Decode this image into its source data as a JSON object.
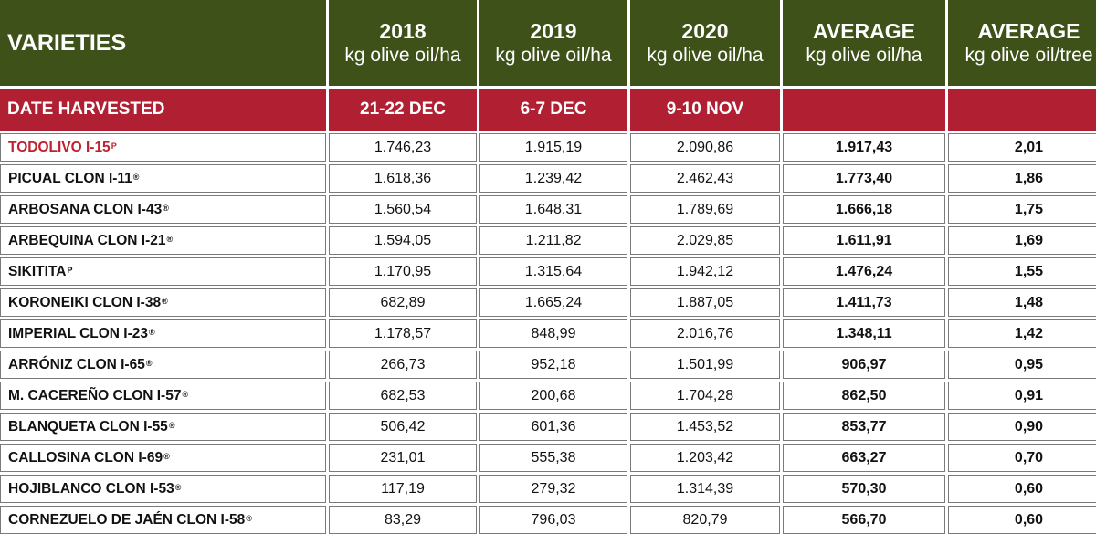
{
  "header": {
    "varieties_label": "VARIETIES",
    "columns": [
      {
        "title": "2018",
        "unit": "kg olive oil/ha"
      },
      {
        "title": "2019",
        "unit": "kg olive oil/ha"
      },
      {
        "title": "2020",
        "unit": "kg olive oil/ha"
      },
      {
        "title": "AVERAGE",
        "unit": "kg olive oil/ha"
      },
      {
        "title": "AVERAGE",
        "unit": "kg olive oil/tree"
      }
    ]
  },
  "date_row": {
    "label": "DATE HARVESTED",
    "values": [
      "21-22 DEC",
      "6-7 DEC",
      "9-10 NOV",
      "",
      ""
    ]
  },
  "rows": [
    {
      "name": "TODOLIVO I-15",
      "mark": "P",
      "values": [
        "1.746,23",
        "1.915,19",
        "2.090,86",
        "1.917,43",
        "2,01"
      ]
    },
    {
      "name": "PICUAL CLON I-11",
      "mark": "®",
      "values": [
        "1.618,36",
        "1.239,42",
        "2.462,43",
        "1.773,40",
        "1,86"
      ]
    },
    {
      "name": "ARBOSANA CLON I-43",
      "mark": "®",
      "values": [
        "1.560,54",
        "1.648,31",
        "1.789,69",
        "1.666,18",
        "1,75"
      ]
    },
    {
      "name": "ARBEQUINA CLON I-21",
      "mark": "®",
      "values": [
        "1.594,05",
        "1.211,82",
        "2.029,85",
        "1.611,91",
        "1,69"
      ]
    },
    {
      "name": "SIKITITA",
      "mark": "P",
      "values": [
        "1.170,95",
        "1.315,64",
        "1.942,12",
        "1.476,24",
        "1,55"
      ]
    },
    {
      "name": "KORONEIKI CLON I-38",
      "mark": "®",
      "values": [
        "682,89",
        "1.665,24",
        "1.887,05",
        "1.411,73",
        "1,48"
      ]
    },
    {
      "name": "IMPERIAL CLON I-23",
      "mark": "®",
      "values": [
        "1.178,57",
        "848,99",
        "2.016,76",
        "1.348,11",
        "1,42"
      ]
    },
    {
      "name": "ARRÓNIZ CLON I-65",
      "mark": "®",
      "values": [
        "266,73",
        "952,18",
        "1.501,99",
        "906,97",
        "0,95"
      ]
    },
    {
      "name": "M. CACEREÑO CLON I-57",
      "mark": "®",
      "values": [
        "682,53",
        "200,68",
        "1.704,28",
        "862,50",
        "0,91"
      ]
    },
    {
      "name": "BLANQUETA CLON I-55",
      "mark": "®",
      "values": [
        "506,42",
        "601,36",
        "1.453,52",
        "853,77",
        "0,90"
      ]
    },
    {
      "name": "CALLOSINA CLON I-69",
      "mark": "®",
      "values": [
        "231,01",
        "555,38",
        "1.203,42",
        "663,27",
        "0,70"
      ]
    },
    {
      "name": "HOJIBLANCO CLON I-53",
      "mark": "®",
      "values": [
        "117,19",
        "279,32",
        "1.314,39",
        "570,30",
        "0,60"
      ]
    },
    {
      "name": "CORNEZUELO DE JAÉN CLON I-58",
      "mark": "®",
      "values": [
        "83,29",
        "796,03",
        "820,79",
        "566,70",
        "0,60"
      ]
    }
  ],
  "colors": {
    "header_green": "#3e5119",
    "date_red": "#b01f32",
    "highlight_red": "#c0202f"
  }
}
